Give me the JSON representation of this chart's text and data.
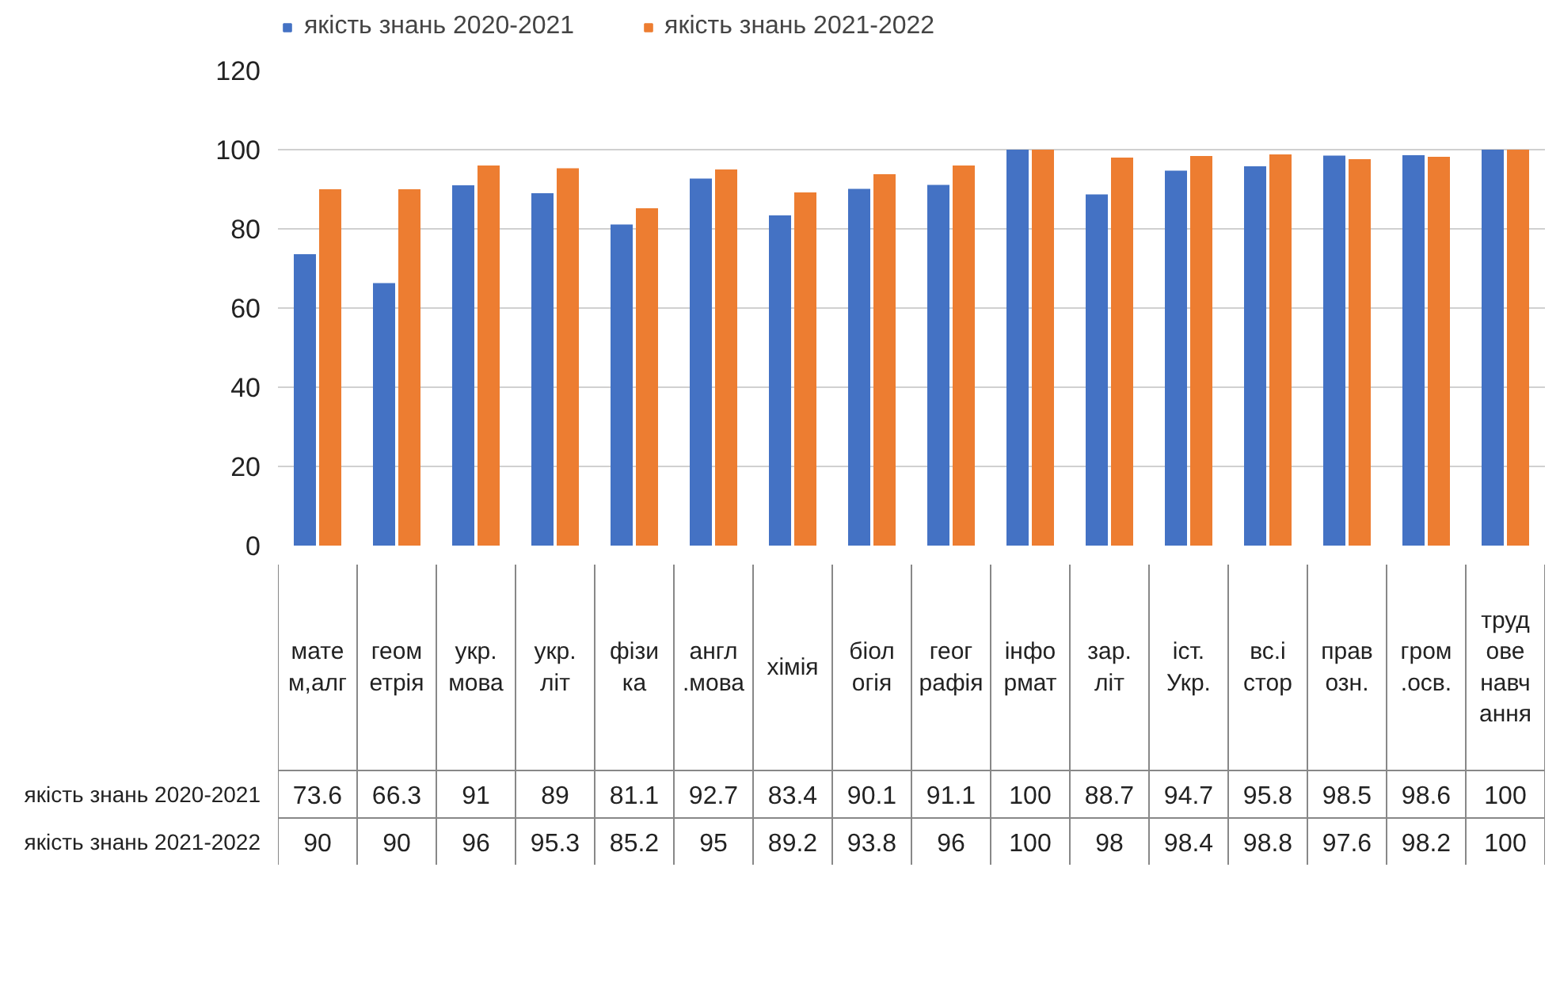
{
  "chart_data": {
    "type": "bar",
    "categories": [
      "матем,алг",
      "геометрія",
      "укр.мова",
      "укр.літ",
      "фізика",
      "англ.мова",
      "хімія",
      "біологія",
      "географія",
      "інформат",
      "зар.літ",
      "іст.Укр.",
      "вс.істор",
      "правозн.",
      "гром.осв.",
      "трудове навчання"
    ],
    "series": [
      {
        "name": "якість знань 2020-2021",
        "color": "#4472c4",
        "values": [
          73.6,
          66.3,
          91,
          89,
          81.1,
          92.7,
          83.4,
          90.1,
          91.1,
          100,
          88.7,
          94.7,
          95.8,
          98.5,
          98.6,
          100
        ]
      },
      {
        "name": "якість знань 2021-2022",
        "color": "#ed7d31",
        "values": [
          90,
          90,
          96,
          95.3,
          85.2,
          95,
          89.2,
          93.8,
          96,
          100,
          98,
          98.4,
          98.8,
          97.6,
          98.2,
          100
        ]
      }
    ],
    "ylim": [
      0,
      120
    ],
    "yticks": [
      0,
      20,
      40,
      60,
      80,
      100,
      120
    ],
    "grid": "y",
    "legend": "top",
    "data_labels": true
  }
}
